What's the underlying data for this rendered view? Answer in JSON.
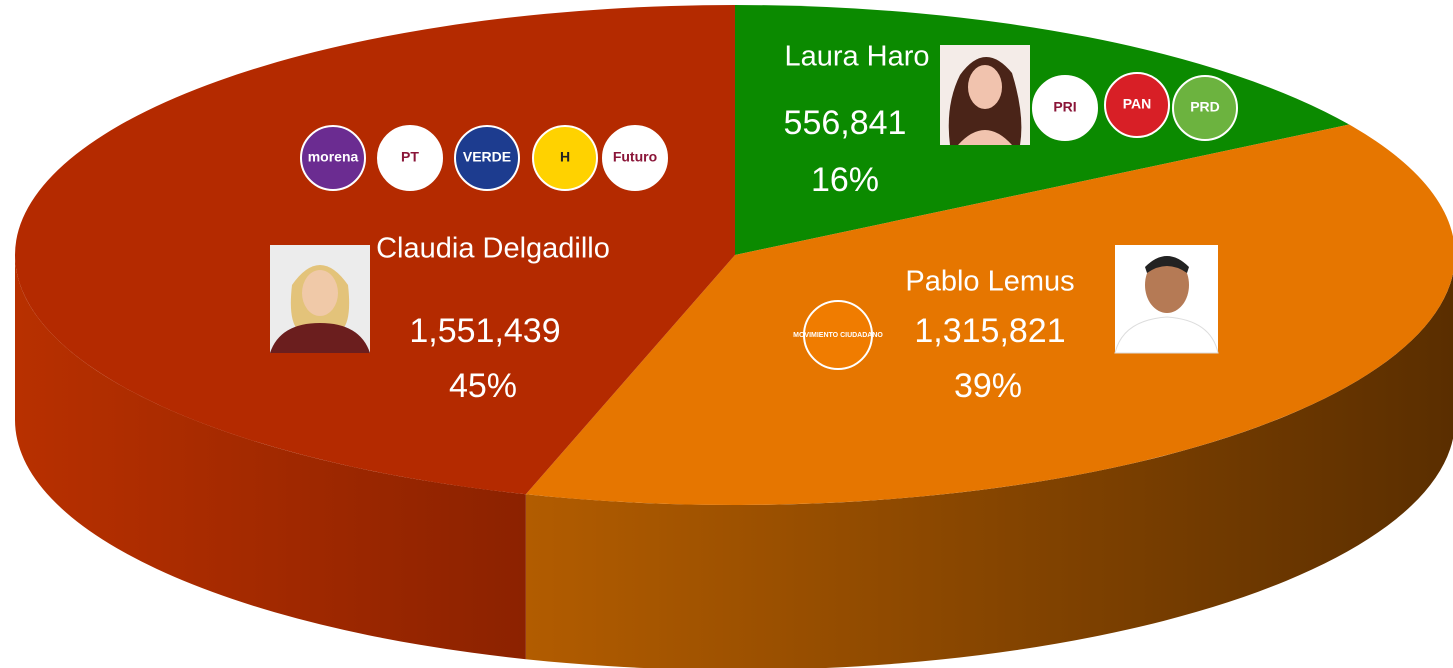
{
  "chart_data": {
    "type": "pie3d",
    "categories": [
      "Laura Haro",
      "Pablo Lemus",
      "Claudia Delgadillo"
    ],
    "values": [
      556841,
      1315821,
      1551439
    ],
    "value_labels": [
      "556,841",
      "1,315,821",
      "1,551,439"
    ],
    "percentages": [
      16,
      39,
      45
    ],
    "percentage_labels": [
      "16%",
      "39%",
      "45%"
    ],
    "colors": [
      "#0b8a00",
      "#e67600",
      "#b42a00"
    ],
    "parties": [
      [
        "PRI",
        "PAN",
        "PRD"
      ],
      [
        "MOVIMIENTO CIUDADANO"
      ],
      [
        "morena",
        "PT",
        "VERDE",
        "H",
        "Futuro"
      ]
    ]
  }
}
